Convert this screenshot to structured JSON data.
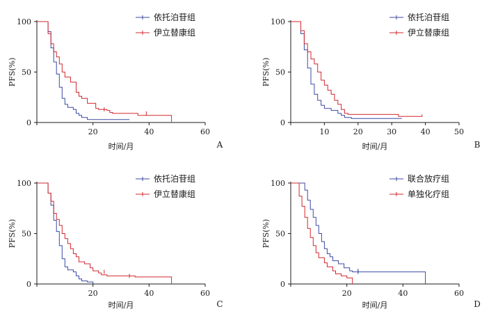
{
  "colors": {
    "blue": "#3b4aa3",
    "red": "#d2272e",
    "axis": "#1a1a1a"
  },
  "chart_data": [
    {
      "panel": "A",
      "type": "line",
      "step": true,
      "ylabel": "PFS(%)",
      "xlabel": "时间/月",
      "xlim": [
        0,
        60
      ],
      "ylim": [
        0,
        100
      ],
      "xticks": [
        0,
        20,
        40,
        60
      ],
      "yticks": [
        0,
        50,
        100
      ],
      "legend": "top-right",
      "series": [
        {
          "name": "依托泊苷组",
          "color": "#3b4aa3",
          "points": [
            [
              0,
              100
            ],
            [
              3,
              100
            ],
            [
              4,
              90
            ],
            [
              5,
              74
            ],
            [
              6,
              60
            ],
            [
              7,
              48
            ],
            [
              8,
              35
            ],
            [
              9,
              24
            ],
            [
              10,
              18
            ],
            [
              11,
              15
            ],
            [
              13,
              13
            ],
            [
              14,
              9
            ],
            [
              15,
              7
            ],
            [
              16,
              5
            ],
            [
              18,
              3
            ],
            [
              20,
              3
            ],
            [
              33,
              3
            ]
          ],
          "censors": []
        },
        {
          "name": "伊立替康组",
          "color": "#d2272e",
          "points": [
            [
              0,
              100
            ],
            [
              3,
              100
            ],
            [
              4,
              88
            ],
            [
              5,
              78
            ],
            [
              6,
              70
            ],
            [
              7,
              65
            ],
            [
              8,
              58
            ],
            [
              9,
              50
            ],
            [
              10,
              45
            ],
            [
              12,
              40
            ],
            [
              14,
              30
            ],
            [
              15,
              26
            ],
            [
              16,
              24
            ],
            [
              18,
              19
            ],
            [
              21,
              14
            ],
            [
              22,
              13
            ],
            [
              24,
              13
            ],
            [
              25,
              12
            ],
            [
              26,
              10
            ],
            [
              27,
              9
            ],
            [
              35,
              9
            ],
            [
              36,
              7
            ],
            [
              48,
              7
            ],
            [
              48,
              0
            ]
          ],
          "censors": [
            [
              24,
              13
            ],
            [
              39,
              9
            ]
          ]
        }
      ]
    },
    {
      "panel": "B",
      "type": "line",
      "step": true,
      "ylabel": "PFS(%)",
      "xlabel": "时间/月",
      "xlim": [
        0,
        50
      ],
      "ylim": [
        0,
        100
      ],
      "xticks": [
        0,
        10,
        20,
        30,
        40,
        50
      ],
      "yticks": [
        0,
        50,
        100
      ],
      "legend": "top-right",
      "series": [
        {
          "name": "依托泊苷组",
          "color": "#3b4aa3",
          "points": [
            [
              0,
              100
            ],
            [
              2,
              100
            ],
            [
              3,
              88
            ],
            [
              4,
              72
            ],
            [
              5,
              54
            ],
            [
              6,
              38
            ],
            [
              7,
              28
            ],
            [
              8,
              22
            ],
            [
              9,
              17
            ],
            [
              10,
              14
            ],
            [
              12,
              12
            ],
            [
              14,
              9
            ],
            [
              15,
              7
            ],
            [
              16,
              5
            ],
            [
              18,
              4
            ],
            [
              33,
              4
            ]
          ],
          "censors": []
        },
        {
          "name": "伊立替康组",
          "color": "#d2272e",
          "points": [
            [
              0,
              100
            ],
            [
              2,
              100
            ],
            [
              3,
              91
            ],
            [
              4,
              78
            ],
            [
              5,
              70
            ],
            [
              6,
              63
            ],
            [
              7,
              58
            ],
            [
              8,
              50
            ],
            [
              9,
              42
            ],
            [
              10,
              37
            ],
            [
              11,
              32
            ],
            [
              12,
              28
            ],
            [
              13,
              22
            ],
            [
              14,
              18
            ],
            [
              15,
              13
            ],
            [
              16,
              9
            ],
            [
              17,
              8
            ],
            [
              31,
              8
            ],
            [
              32,
              6
            ],
            [
              39,
              6
            ],
            [
              39,
              8
            ]
          ],
          "censors": []
        }
      ]
    },
    {
      "panel": "C",
      "type": "line",
      "step": true,
      "ylabel": "PFS(%)",
      "xlabel": "时间/月",
      "xlim": [
        0,
        60
      ],
      "ylim": [
        0,
        100
      ],
      "xticks": [
        0,
        20,
        40,
        60
      ],
      "yticks": [
        0,
        50,
        100
      ],
      "legend": "top-right",
      "series": [
        {
          "name": "依托泊苷组",
          "color": "#3b4aa3",
          "points": [
            [
              0,
              100
            ],
            [
              3,
              100
            ],
            [
              4,
              90
            ],
            [
              5,
              78
            ],
            [
              6,
              63
            ],
            [
              7,
              52
            ],
            [
              8,
              38
            ],
            [
              9,
              25
            ],
            [
              10,
              17
            ],
            [
              11,
              14
            ],
            [
              13,
              12
            ],
            [
              14,
              8
            ],
            [
              15,
              5
            ],
            [
              16,
              3
            ],
            [
              18,
              2
            ],
            [
              20,
              0
            ]
          ],
          "censors": []
        },
        {
          "name": "伊立替康组",
          "color": "#d2272e",
          "points": [
            [
              0,
              100
            ],
            [
              3,
              100
            ],
            [
              4,
              90
            ],
            [
              5,
              82
            ],
            [
              6,
              70
            ],
            [
              7,
              64
            ],
            [
              8,
              58
            ],
            [
              9,
              50
            ],
            [
              10,
              45
            ],
            [
              11,
              40
            ],
            [
              12,
              35
            ],
            [
              13,
              30
            ],
            [
              14,
              27
            ],
            [
              15,
              22
            ],
            [
              17,
              20
            ],
            [
              19,
              16
            ],
            [
              20,
              13
            ],
            [
              22,
              11
            ],
            [
              23,
              9
            ],
            [
              25,
              8
            ],
            [
              33,
              8
            ],
            [
              35,
              7
            ],
            [
              48,
              7
            ],
            [
              48,
              0
            ]
          ],
          "censors": [
            [
              24,
              12
            ],
            [
              33,
              8
            ]
          ]
        }
      ]
    },
    {
      "panel": "D",
      "type": "line",
      "step": true,
      "ylabel": "PFS(%)",
      "xlabel": "时间/月",
      "xlim": [
        0,
        60
      ],
      "ylim": [
        0,
        100
      ],
      "xticks": [
        0,
        20,
        40,
        60
      ],
      "yticks": [
        0,
        50,
        100
      ],
      "legend": "top-right",
      "series": [
        {
          "name": "联合放疗组",
          "color": "#3b4aa3",
          "points": [
            [
              0,
              100
            ],
            [
              4,
              100
            ],
            [
              5,
              93
            ],
            [
              6,
              83
            ],
            [
              7,
              74
            ],
            [
              8,
              66
            ],
            [
              9,
              58
            ],
            [
              10,
              50
            ],
            [
              11,
              42
            ],
            [
              12,
              35
            ],
            [
              13,
              30
            ],
            [
              14,
              27
            ],
            [
              15,
              23
            ],
            [
              17,
              20
            ],
            [
              19,
              16
            ],
            [
              21,
              13
            ],
            [
              22,
              12
            ],
            [
              47,
              12
            ],
            [
              48,
              0
            ]
          ],
          "censors": [
            [
              24,
              13
            ],
            [
              24,
              12
            ]
          ]
        },
        {
          "name": "单独化疗组",
          "color": "#d2272e",
          "points": [
            [
              0,
              100
            ],
            [
              2,
              100
            ],
            [
              3,
              87
            ],
            [
              4,
              77
            ],
            [
              5,
              66
            ],
            [
              6,
              55
            ],
            [
              7,
              46
            ],
            [
              8,
              38
            ],
            [
              9,
              31
            ],
            [
              10,
              26
            ],
            [
              12,
              21
            ],
            [
              13,
              17
            ],
            [
              15,
              13
            ],
            [
              16,
              10
            ],
            [
              18,
              8
            ],
            [
              20,
              6
            ],
            [
              22,
              4
            ],
            [
              22,
              0
            ]
          ],
          "censors": []
        }
      ]
    }
  ]
}
